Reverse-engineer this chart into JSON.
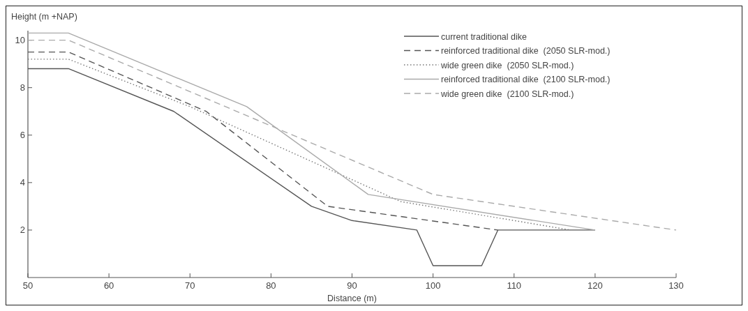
{
  "chart_data": {
    "type": "line",
    "xlabel": "Distance (m)",
    "ylabel": "Height (m +NAP)",
    "xlim": [
      50,
      130
    ],
    "xticks": [
      50,
      60,
      70,
      80,
      90,
      100,
      110,
      120,
      130
    ],
    "ylim": [
      0,
      10.4
    ],
    "yticks": [
      2,
      4,
      6,
      8,
      10
    ],
    "legend": "top right",
    "grid": false,
    "series": [
      {
        "name": "current traditional dike",
        "color": "#555555",
        "line_style": "solid",
        "x": [
          50,
          55,
          68,
          85,
          90,
          98,
          100,
          106,
          108,
          120
        ],
        "values": [
          8.8,
          8.8,
          7,
          3,
          2.4,
          2,
          0.5,
          0.5,
          2,
          2
        ]
      },
      {
        "name": "reinforced traditional dike  (2050 SLR-mod.)",
        "color": "#555555",
        "line_style": "dashed",
        "x": [
          50,
          55,
          72,
          87,
          108
        ],
        "values": [
          9.5,
          9.5,
          7,
          3,
          2
        ]
      },
      {
        "name": "wide green dike  (2050 SLR-mod.)",
        "color": "#777777",
        "line_style": "dotted",
        "x": [
          50,
          55,
          70,
          96,
          117
        ],
        "values": [
          9.2,
          9.2,
          7.2,
          3.2,
          2
        ]
      },
      {
        "name": "reinforced traditional dike  (2100 SLR-mod.)",
        "color": "#aaaaaa",
        "line_style": "solid",
        "x": [
          50,
          55,
          77,
          92,
          120
        ],
        "values": [
          10.3,
          10.3,
          7.2,
          3.5,
          2
        ]
      },
      {
        "name": "wide green dike  (2100 SLR-mod.)",
        "color": "#aaaaaa",
        "line_style": "dashed",
        "x": [
          50,
          55,
          100,
          130
        ],
        "values": [
          10,
          10,
          3.5,
          2
        ]
      }
    ]
  }
}
